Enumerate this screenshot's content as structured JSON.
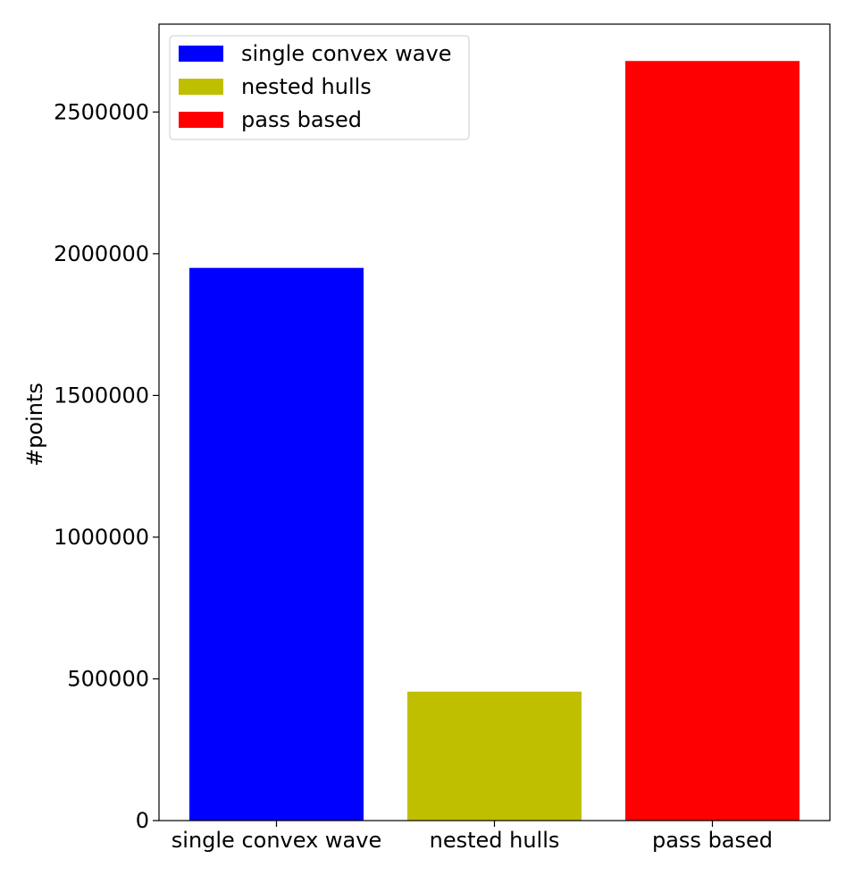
{
  "chart_data": {
    "type": "bar",
    "title": "",
    "xlabel": "",
    "ylabel": "#points",
    "categories": [
      "single convex wave",
      "nested hulls",
      "pass based"
    ],
    "values": [
      1950000,
      455000,
      2680000
    ],
    "colors": [
      "#0000ff",
      "#bfbf00",
      "#ff0000"
    ],
    "ylim": [
      0,
      2810000
    ],
    "yticks": [
      0,
      500000,
      1000000,
      1500000,
      2000000,
      2500000
    ],
    "ytick_labels": [
      "0",
      "500000",
      "1000000",
      "1500000",
      "2000000",
      "2500000"
    ],
    "grid": false,
    "legend": {
      "location": "upper-left",
      "entries": [
        {
          "label": "single convex wave",
          "color": "#0000ff"
        },
        {
          "label": "nested hulls",
          "color": "#bfbf00"
        },
        {
          "label": "pass based",
          "color": "#ff0000"
        }
      ]
    }
  }
}
